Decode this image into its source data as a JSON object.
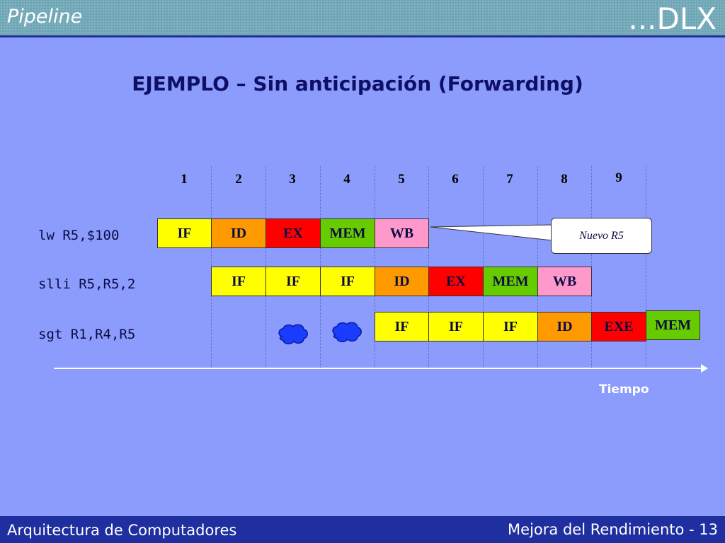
{
  "header": {
    "left": "Pipeline",
    "right": "...DLX"
  },
  "title": "EJEMPLO – Sin anticipación (Forwarding)",
  "cycles": [
    "1",
    "2",
    "3",
    "4",
    "5",
    "6",
    "7",
    "8",
    "9"
  ],
  "instructions": [
    {
      "text": "lw R5,$100",
      "stages": [
        {
          "label": "IF",
          "color": "#ffff00"
        },
        {
          "label": "ID",
          "color": "#ff9900"
        },
        {
          "label": "EX",
          "color": "#ff0000"
        },
        {
          "label": "MEM",
          "color": "#66cc00"
        },
        {
          "label": "WB",
          "color": "#ff99cc"
        }
      ]
    },
    {
      "text": "slli R5,R5,2",
      "stages": [
        {
          "label": "IF",
          "color": "#ffff00"
        },
        {
          "label": "IF",
          "color": "#ffff00"
        },
        {
          "label": "IF",
          "color": "#ffff00"
        },
        {
          "label": "ID",
          "color": "#ff9900"
        },
        {
          "label": "EX",
          "color": "#ff0000"
        },
        {
          "label": "MEM",
          "color": "#66cc00"
        },
        {
          "label": "WB",
          "color": "#ff99cc"
        }
      ]
    },
    {
      "text": "sgt R1,R4,R5",
      "stages": [
        {
          "label": "IF",
          "color": "#ffff00"
        },
        {
          "label": "IF",
          "color": "#ffff00"
        },
        {
          "label": "IF",
          "color": "#ffff00"
        },
        {
          "label": "ID",
          "color": "#ff9900"
        },
        {
          "label": "EXE",
          "color": "#ff0000"
        },
        {
          "label": "MEM",
          "color": "#66cc00"
        }
      ]
    }
  ],
  "callout": "Nuevo R5",
  "axis_label": "Tiempo",
  "footer": {
    "left": "Arquitectura de Computadores",
    "right": "Mejora del Rendimiento - 13"
  },
  "colors": {
    "background": "#8c9cfc",
    "bars": "#1f2fa0",
    "bubble": "#1a3cff"
  }
}
